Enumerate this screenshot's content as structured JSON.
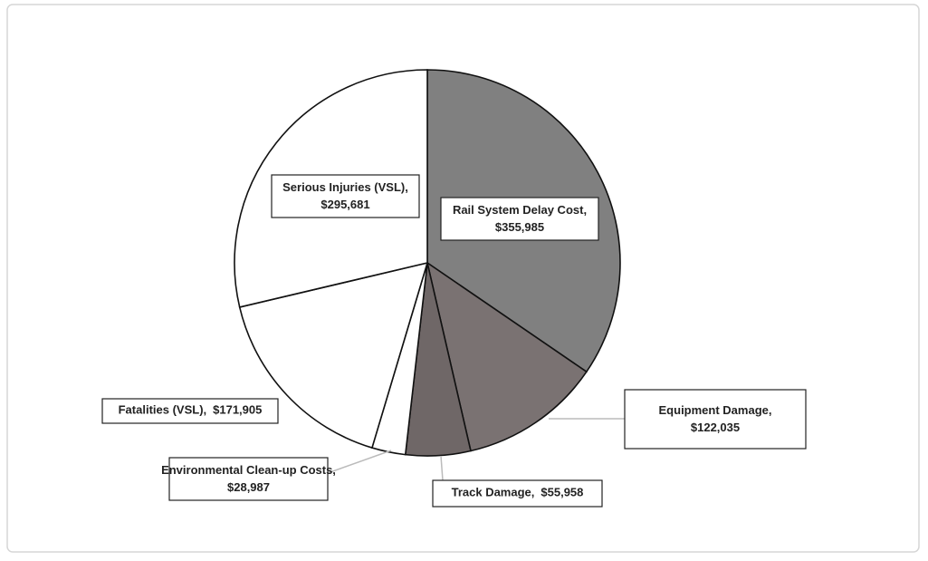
{
  "chart_data": {
    "type": "pie",
    "categories": [
      "Rail System Delay Cost,",
      "Equipment Damage,",
      "Track Damage,",
      "Environmental Clean-up Costs,",
      "Fatalities (VSL),",
      "Serious Injuries (VSL),"
    ],
    "values": [
      355985,
      122035,
      55958,
      28987,
      171905,
      295681
    ],
    "value_labels": [
      "$355,985",
      "$122,035",
      "$55,958",
      "$28,987",
      "$171,905",
      "$295,681"
    ],
    "colors": [
      "#808080",
      "#7a7272",
      "#6f6767",
      "#ffffff",
      "#ffffff",
      "#ffffff"
    ]
  }
}
